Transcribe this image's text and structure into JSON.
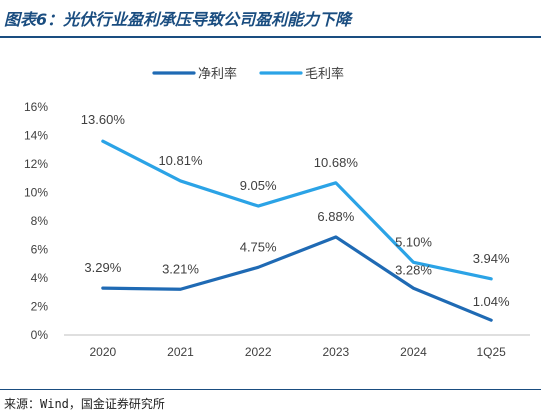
{
  "figure": {
    "title": "图表6：光伏行业盈利承压导致公司盈利能力下降",
    "source": "来源：Wind，国金证券研究所"
  },
  "chart_data": {
    "type": "line",
    "categories": [
      "2020",
      "2021",
      "2022",
      "2023",
      "2024",
      "1Q25"
    ],
    "series": [
      {
        "name": "净利率",
        "values": [
          3.29,
          3.21,
          4.75,
          6.88,
          3.28,
          1.04
        ],
        "labels": [
          "3.29%",
          "3.21%",
          "4.75%",
          "6.88%",
          "3.28%",
          "1.04%"
        ],
        "color": "#1f6ab4"
      },
      {
        "name": "毛利率",
        "values": [
          13.6,
          10.81,
          9.05,
          10.68,
          5.1,
          3.94
        ],
        "labels": [
          "13.60%",
          "10.81%",
          "9.05%",
          "10.68%",
          "5.10%",
          "3.94%"
        ],
        "color": "#2ba3e6"
      }
    ],
    "ylim": [
      0,
      16
    ],
    "yticks": [
      "0%",
      "2%",
      "4%",
      "6%",
      "8%",
      "10%",
      "12%",
      "14%",
      "16%"
    ],
    "grid": false,
    "legend": "top-center"
  }
}
